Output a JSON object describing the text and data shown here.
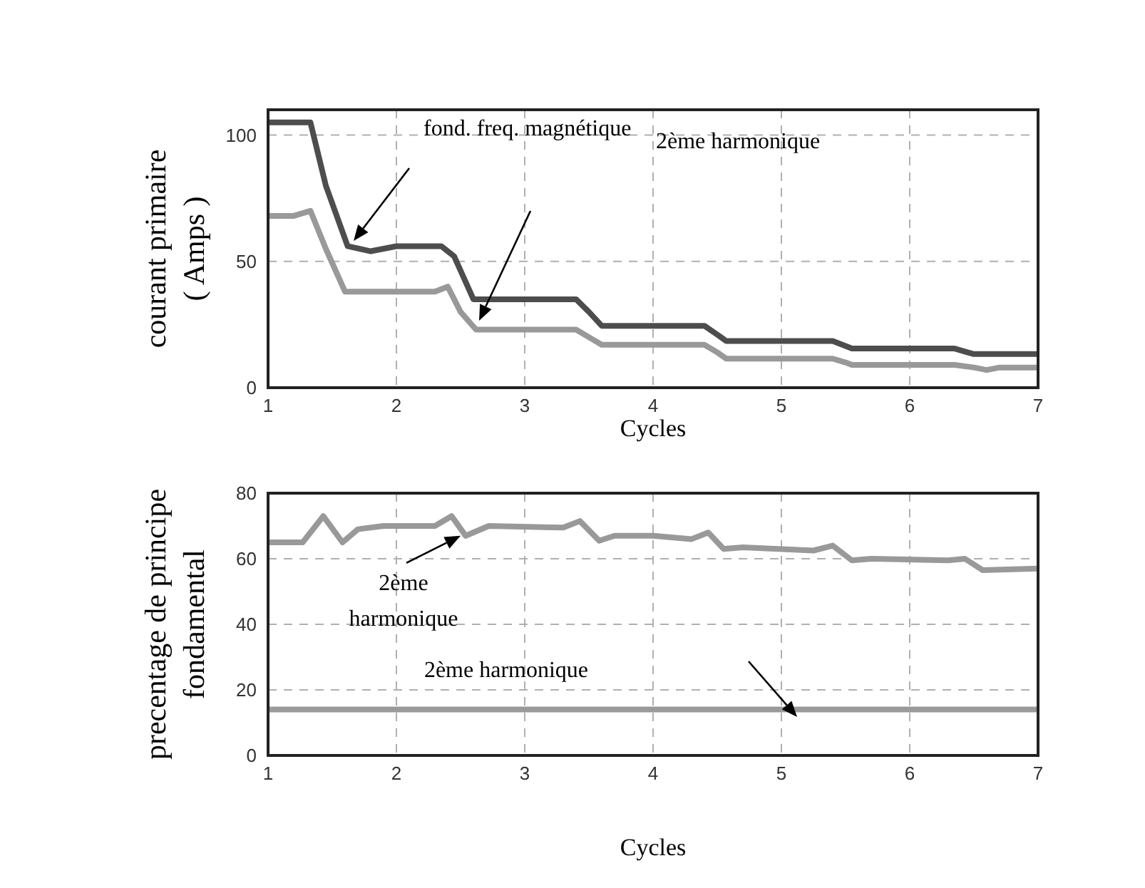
{
  "chart_data": [
    {
      "type": "line",
      "xlabel": "Cycles",
      "ylabel": "courant primaire\n( Amps )",
      "xlim": [
        1,
        7
      ],
      "xticks": [
        1,
        2,
        3,
        4,
        5,
        6,
        7
      ],
      "ylim": [
        0,
        110
      ],
      "yticks": [
        0,
        50,
        100
      ],
      "grid": true,
      "series": [
        {
          "color": "#4d4d4d",
          "x": [
            1,
            1.33,
            1.45,
            1.62,
            1.8,
            2.0,
            2.35,
            2.45,
            2.6,
            3.4,
            3.5,
            3.6,
            4.4,
            4.5,
            4.57,
            5.4,
            5.5,
            5.55,
            6.35,
            6.45,
            6.5,
            7
          ],
          "values": [
            105,
            105,
            80,
            56,
            54,
            56,
            56,
            52,
            35,
            35,
            30,
            24.5,
            24.5,
            21,
            18.5,
            18.5,
            16.5,
            15.5,
            15.5,
            14,
            13.3,
            13.3
          ]
        },
        {
          "color": "#999999",
          "x": [
            1,
            1.2,
            1.33,
            1.45,
            1.6,
            1.8,
            2.3,
            2.4,
            2.5,
            2.62,
            3.4,
            3.5,
            3.6,
            4.4,
            4.5,
            4.57,
            5.4,
            5.5,
            5.55,
            6.35,
            6.5,
            6.6,
            6.7,
            7
          ],
          "values": [
            68,
            68,
            70,
            55,
            38,
            38,
            38,
            40,
            30,
            23,
            23,
            20,
            17,
            17,
            14,
            11.5,
            11.5,
            10,
            9,
            9,
            8,
            7,
            8,
            8
          ]
        }
      ],
      "annotations": [
        "fond. freq. magnétique",
        "2ème  harmonique"
      ]
    },
    {
      "type": "line",
      "xlabel": "Cycles",
      "ylabel": "precentage de principe\nfondamental",
      "xlim": [
        1,
        7
      ],
      "xticks": [
        1,
        2,
        3,
        4,
        5,
        6,
        7
      ],
      "ylim": [
        0,
        80
      ],
      "yticks": [
        0,
        20,
        40,
        60,
        80
      ],
      "grid": true,
      "series": [
        {
          "color": "#999999",
          "x": [
            1,
            1.27,
            1.43,
            1.58,
            1.7,
            1.9,
            2.3,
            2.43,
            2.54,
            2.72,
            3.3,
            3.43,
            3.58,
            3.7,
            4.0,
            4.3,
            4.43,
            4.55,
            4.7,
            5.25,
            5.4,
            5.55,
            5.7,
            6.3,
            6.43,
            6.57,
            7
          ],
          "values": [
            65,
            65,
            73,
            65,
            69,
            70,
            70,
            73,
            67,
            70,
            69.5,
            71.5,
            65.5,
            67,
            67,
            66,
            68,
            63,
            63.5,
            62.5,
            64,
            59.5,
            60,
            59.5,
            60,
            56.5,
            57
          ]
        },
        {
          "color": "#999999",
          "x": [
            1,
            7
          ],
          "values": [
            14,
            14
          ]
        }
      ],
      "annotations": [
        {
          "text": "2ème\nharmonique",
          "x": 2.5,
          "y": 67
        },
        "2ème  harmonique"
      ]
    }
  ]
}
